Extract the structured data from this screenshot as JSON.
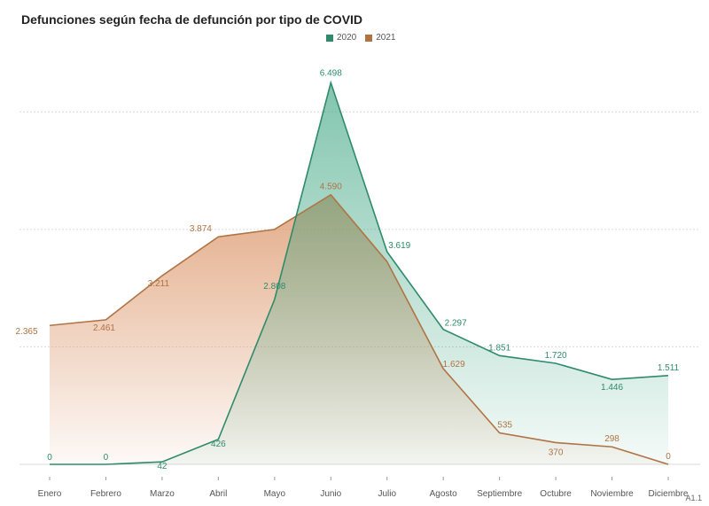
{
  "title": "Defunciones según fecha de defunción por tipo de COVID",
  "footer": "A1.1",
  "colors": {
    "2020": "#2e8b6b",
    "2021": "#b07344",
    "fill2020": "#2e9e78",
    "fill2021": "#d98f5f",
    "grid": "#d9d9d9"
  },
  "chart_data": {
    "type": "area",
    "categories": [
      "Enero",
      "Febrero",
      "Marzo",
      "Abril",
      "Mayo",
      "Junio",
      "Julio",
      "Agosto",
      "Septiembre",
      "Octubre",
      "Noviembre",
      "Diciembre"
    ],
    "series": [
      {
        "name": "2020",
        "values": [
          0,
          0,
          42,
          426,
          2808,
          6498,
          3619,
          2297,
          1851,
          1720,
          1446,
          1511
        ],
        "labels": [
          "0",
          "0",
          "42",
          "426",
          "2.808",
          "6.498",
          "3.619",
          "2.297",
          "1.851",
          "1.720",
          "1.446",
          "1.511"
        ]
      },
      {
        "name": "2021",
        "values": [
          2365,
          2461,
          3211,
          3874,
          4000,
          4590,
          3450,
          1629,
          535,
          370,
          298,
          0
        ],
        "labels": [
          "2.365",
          "2.461",
          "3.211",
          "3.874",
          "",
          "4.590",
          "",
          "1.629",
          "535",
          "370",
          "298",
          "0"
        ]
      }
    ],
    "ylim": [
      0,
      7000
    ],
    "grid": true,
    "legend": "top-center"
  }
}
